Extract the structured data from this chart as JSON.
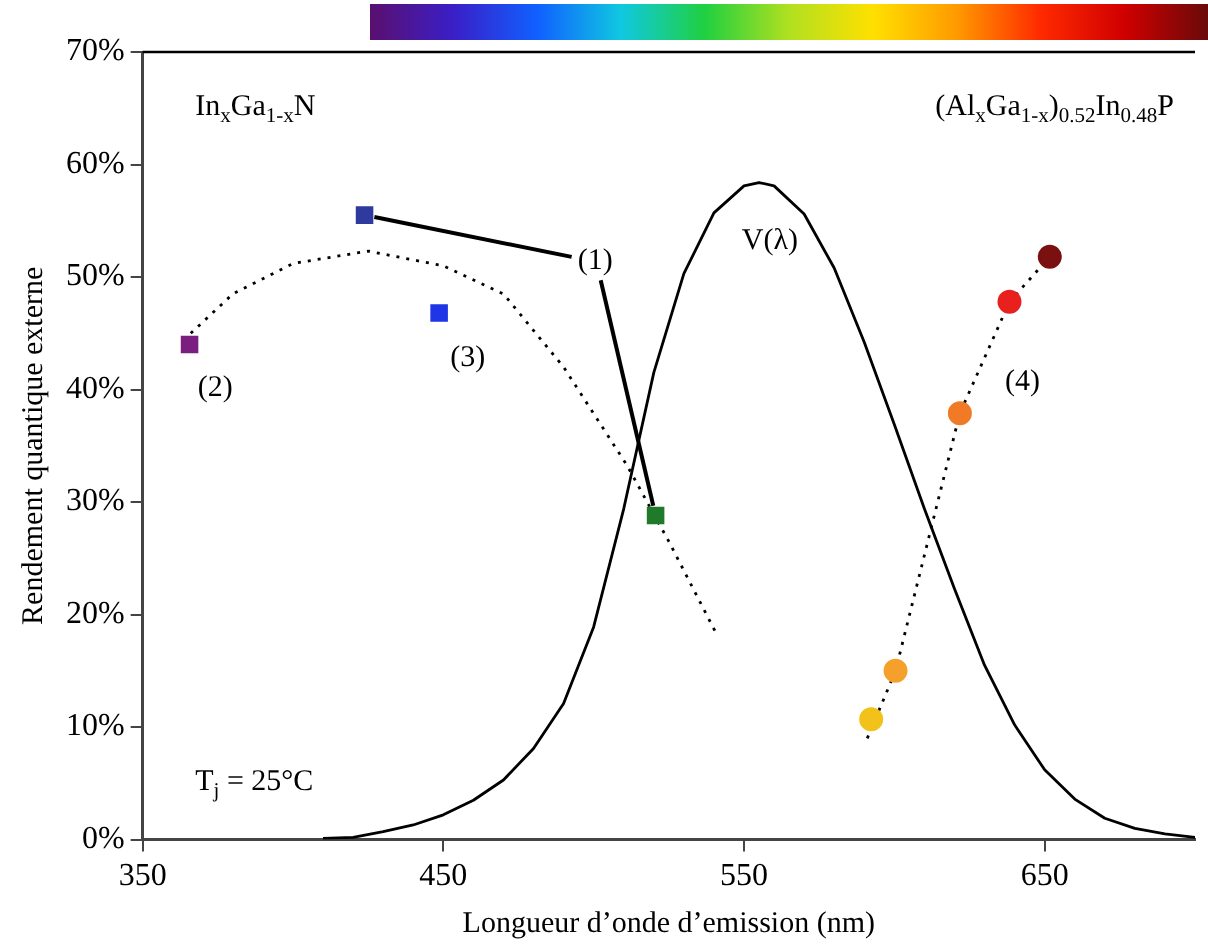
{
  "chart_data": {
    "type": "scatter",
    "xlabel": "Longueur d’onde d’emission (nm)",
    "ylabel": "Rendement quantique externe",
    "xlim": [
      350,
      700
    ],
    "xticks": [
      350,
      450,
      550,
      650
    ],
    "ylim": [
      0,
      70
    ],
    "yticks": [
      {
        "value": 0,
        "label": "0%"
      },
      {
        "value": 10,
        "label": "10%"
      },
      {
        "value": 20,
        "label": "20%"
      },
      {
        "value": 30,
        "label": "30%"
      },
      {
        "value": 40,
        "label": "40%"
      },
      {
        "value": 50,
        "label": "50%"
      },
      {
        "value": 60,
        "label": "60%"
      },
      {
        "value": 70,
        "label": "70%"
      }
    ],
    "grid": false,
    "legend": false,
    "series": [
      {
        "type": "scatter",
        "marker": "square",
        "x": [
          365.6,
          423.8,
          448.6,
          520.6
        ],
        "values": [
          44.0,
          55.5,
          46.8,
          28.8
        ],
        "colors": [
          "#7a1f80",
          "#2e3a9e",
          "#1f35e6",
          "#1f7a2a"
        ]
      },
      {
        "type": "scatter",
        "marker": "circle",
        "x": [
          592.3,
          600.4,
          621.8,
          638.3,
          651.7
        ],
        "values": [
          10.7,
          15.0,
          37.9,
          47.8,
          51.8
        ],
        "colors": [
          "#f2c21a",
          "#f5a02a",
          "#f07a26",
          "#e8201e",
          "#7a1010"
        ]
      },
      {
        "type": "line",
        "marker": "none",
        "line_style": "dotted",
        "color": "#000000",
        "x": [
          366,
          380,
          400,
          425,
          450,
          470,
          490,
          511,
          525,
          541
        ],
        "values": [
          45,
          48.5,
          51.2,
          52.3,
          51,
          48.5,
          42,
          33.3,
          26.5,
          18.2
        ]
      },
      {
        "type": "line",
        "marker": "none",
        "line_style": "dotted",
        "color": "#000000",
        "x": [
          591,
          600.4,
          621.8,
          638.3,
          651.7
        ],
        "values": [
          9,
          15.0,
          37.9,
          47.8,
          51.8
        ]
      },
      {
        "type": "line",
        "marker": "none",
        "line_style": "solid",
        "color": "#000000",
        "x": [
          410,
          420,
          430,
          440,
          450,
          460,
          470,
          480,
          490,
          500,
          510,
          520,
          530,
          540,
          550,
          555,
          560,
          570,
          580,
          590,
          600,
          610,
          620,
          630,
          640,
          650,
          660,
          670,
          680,
          690,
          700
        ],
        "values": [
          0.1,
          0.2,
          0.7,
          1.3,
          2.2,
          3.5,
          5.3,
          8.1,
          12.1,
          18.9,
          29.4,
          41.5,
          50.3,
          55.7,
          58.1,
          58.4,
          58.1,
          55.6,
          50.8,
          44.2,
          36.9,
          29.4,
          22.3,
          15.5,
          10.2,
          6.2,
          3.6,
          1.9,
          1.0,
          0.5,
          0.2
        ]
      }
    ],
    "annotations": [
      {
        "text": "(1)",
        "x": 520.6,
        "y": 28.8
      },
      "(2)",
      "(3)",
      "(4)",
      "V(λ)",
      "In$_{x}$Ga$_{1-x}$N",
      "(Al$_{x}$Ga$_{1-x}$)$_{0.52}$In$_{0.48}$P",
      "T$_{j}$ = 25°C"
    ]
  }
}
